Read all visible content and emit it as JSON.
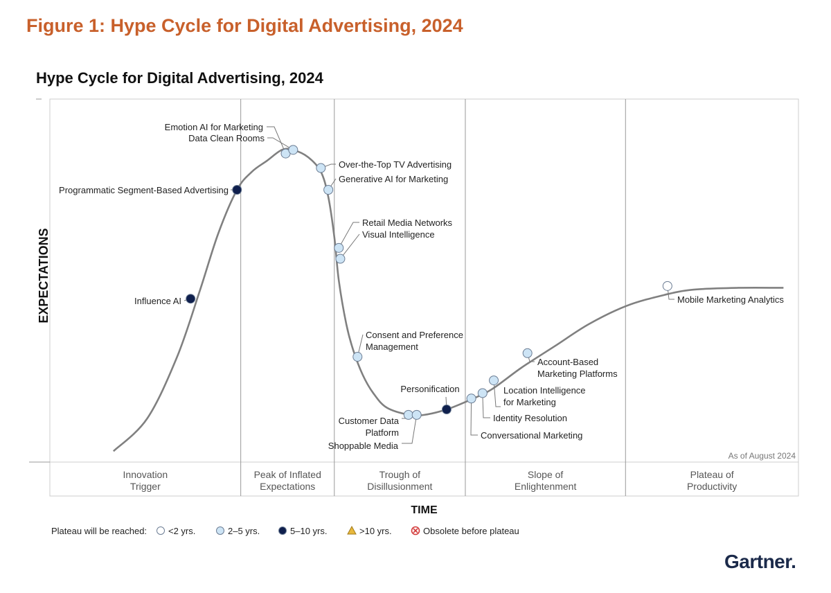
{
  "figure_title": "Figure 1: Hype Cycle for Digital Advertising, 2024",
  "brand": "Gartner",
  "brand_dot": ".",
  "colors": {
    "accent": "#c8602b",
    "curve": "#808080",
    "lt2": "#ffffff",
    "y2to5": "#cde4f5",
    "y5to10": "#0f1f4d",
    "gt10": "#e8b83c",
    "obsolete": "#d33b3b"
  },
  "chart_data": {
    "type": "hype_cycle",
    "title": "Hype Cycle for Digital Advertising, 2024",
    "xlabel": "TIME",
    "ylabel": "EXPECTATIONS",
    "as_of": "As of August 2024",
    "phases": [
      {
        "lines": [
          "Innovation",
          "Trigger"
        ],
        "start": 0.0,
        "end": 0.255
      },
      {
        "lines": [
          "Peak of Inflated",
          "Expectations"
        ],
        "start": 0.255,
        "end": 0.38
      },
      {
        "lines": [
          "Trough of",
          "Disillusionment"
        ],
        "start": 0.38,
        "end": 0.555
      },
      {
        "lines": [
          "Slope of",
          "Enlightenment"
        ],
        "start": 0.555,
        "end": 0.769
      },
      {
        "lines": [
          "Plateau of",
          "Productivity"
        ],
        "start": 0.769,
        "end": 1.0
      }
    ],
    "curve": [
      [
        0.085,
        0.03
      ],
      [
        0.13,
        0.12
      ],
      [
        0.17,
        0.29
      ],
      [
        0.2,
        0.47
      ],
      [
        0.225,
        0.63
      ],
      [
        0.25,
        0.75
      ],
      [
        0.27,
        0.8
      ],
      [
        0.29,
        0.83
      ],
      [
        0.31,
        0.86
      ],
      [
        0.325,
        0.86
      ],
      [
        0.345,
        0.84
      ],
      [
        0.362,
        0.8
      ],
      [
        0.372,
        0.73
      ],
      [
        0.38,
        0.62
      ],
      [
        0.386,
        0.5
      ],
      [
        0.396,
        0.38
      ],
      [
        0.405,
        0.31
      ],
      [
        0.418,
        0.24
      ],
      [
        0.432,
        0.19
      ],
      [
        0.45,
        0.15
      ],
      [
        0.48,
        0.13
      ],
      [
        0.5,
        0.13
      ],
      [
        0.53,
        0.145
      ],
      [
        0.56,
        0.17
      ],
      [
        0.59,
        0.2
      ],
      [
        0.63,
        0.26
      ],
      [
        0.675,
        0.32
      ],
      [
        0.72,
        0.38
      ],
      [
        0.77,
        0.43
      ],
      [
        0.82,
        0.46
      ],
      [
        0.86,
        0.475
      ],
      [
        0.92,
        0.48
      ],
      [
        0.98,
        0.48
      ]
    ],
    "technologies": [
      {
        "name": "Emotion AI for Marketing",
        "x": 0.315,
        "y": 0.85,
        "plateau": "2-5"
      },
      {
        "name": "Data Clean Rooms",
        "x": 0.325,
        "y": 0.86,
        "plateau": "2-5"
      },
      {
        "name": "Over-the-Top TV Advertising",
        "x": 0.362,
        "y": 0.81,
        "plateau": "2-5"
      },
      {
        "name": "Generative AI for Marketing",
        "x": 0.372,
        "y": 0.75,
        "plateau": "2-5"
      },
      {
        "name": "Programmatic Segment-Based Advertising",
        "x": 0.25,
        "y": 0.75,
        "plateau": "5-10"
      },
      {
        "name": "Retail Media Networks",
        "x": 0.386,
        "y": 0.59,
        "plateau": "2-5"
      },
      {
        "name": "Visual Intelligence",
        "x": 0.388,
        "y": 0.56,
        "plateau": "2-5"
      },
      {
        "name": "Influence AI",
        "x": 0.188,
        "y": 0.45,
        "plateau": "5-10"
      },
      {
        "name": "Consent and Preference Management",
        "x": 0.411,
        "y": 0.29,
        "plateau": "2-5"
      },
      {
        "name": "Personification",
        "x": 0.53,
        "y": 0.145,
        "plateau": "5-10"
      },
      {
        "name": "Customer Data Platform",
        "x": 0.479,
        "y": 0.13,
        "plateau": "2-5"
      },
      {
        "name": "Shoppable Media",
        "x": 0.49,
        "y": 0.13,
        "plateau": "2-5"
      },
      {
        "name": "Conversational Marketing",
        "x": 0.563,
        "y": 0.175,
        "plateau": "2-5"
      },
      {
        "name": "Identity Resolution",
        "x": 0.578,
        "y": 0.19,
        "plateau": "2-5"
      },
      {
        "name": "Location Intelligence for Marketing",
        "x": 0.593,
        "y": 0.225,
        "plateau": "2-5"
      },
      {
        "name": "Account-Based Marketing Platforms",
        "x": 0.638,
        "y": 0.3,
        "plateau": "2-5"
      },
      {
        "name": "Mobile Marketing Analytics",
        "x": 0.825,
        "y": 0.485,
        "plateau": "<2"
      }
    ],
    "labels": {
      "Emotion AI for Marketing": [
        "Emotion AI for Marketing"
      ],
      "Data Clean Rooms": [
        "Data Clean Rooms"
      ],
      "Over-the-Top TV Advertising": [
        "Over-the-Top TV Advertising"
      ],
      "Generative AI for Marketing": [
        "Generative AI for Marketing"
      ],
      "Programmatic Segment-Based Advertising": [
        "Programmatic Segment-Based Advertising"
      ],
      "Retail Media Networks": [
        "Retail Media Networks"
      ],
      "Visual Intelligence": [
        "Visual Intelligence"
      ],
      "Influence AI": [
        "Influence AI"
      ],
      "Consent and Preference Management": [
        "Consent and Preference",
        "Management"
      ],
      "Personification": [
        "Personification"
      ],
      "Customer Data Platform": [
        "Customer Data",
        "Platform"
      ],
      "Shoppable Media": [
        "Shoppable Media"
      ],
      "Conversational Marketing": [
        "Conversational Marketing"
      ],
      "Identity Resolution": [
        "Identity Resolution"
      ],
      "Location Intelligence for Marketing": [
        "Location Intelligence",
        "for Marketing"
      ],
      "Account-Based Marketing Platforms": [
        "Account-Based",
        "Marketing Platforms"
      ],
      "Mobile Marketing Analytics": [
        "Mobile Marketing Analytics"
      ]
    },
    "legend": {
      "title": "Plateau will be reached:",
      "items": [
        {
          "key": "<2",
          "label": "<2 yrs.",
          "marker": "circle",
          "color": "#ffffff"
        },
        {
          "key": "2-5",
          "label": "2–5 yrs.",
          "marker": "circle",
          "color": "#cde4f5"
        },
        {
          "key": "5-10",
          "label": "5–10 yrs.",
          "marker": "circle",
          "color": "#0f1f4d"
        },
        {
          "key": ">10",
          "label": ">10 yrs.",
          "marker": "triangle",
          "color": "#e8b83c"
        },
        {
          "key": "obsolete",
          "label": "Obsolete before plateau",
          "marker": "x-circle",
          "color": "#d33b3b"
        }
      ]
    }
  }
}
